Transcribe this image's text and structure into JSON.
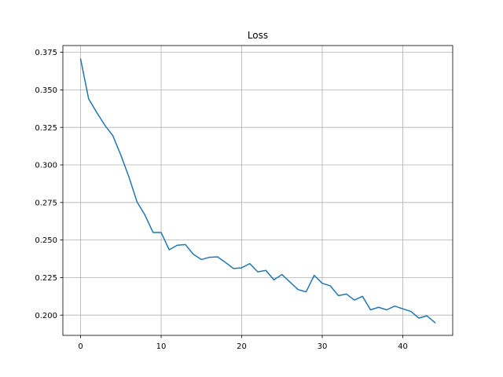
{
  "colors": {
    "line": "#1f77b4",
    "grid": "#b0b0b0",
    "axes": "#000000",
    "background": "#ffffff"
  },
  "chart_data": {
    "type": "line",
    "title": "Loss",
    "xlabel": "",
    "ylabel": "",
    "grid": true,
    "xlim": [
      -2.2,
      46.2
    ],
    "ylim": [
      0.1865,
      0.3795
    ],
    "xticks": [
      0,
      10,
      20,
      30,
      40
    ],
    "xtick_labels": [
      "0",
      "10",
      "20",
      "30",
      "40"
    ],
    "yticks": [
      0.2,
      0.225,
      0.25,
      0.275,
      0.3,
      0.325,
      0.35,
      0.375
    ],
    "ytick_labels": [
      "0.200",
      "0.225",
      "0.250",
      "0.275",
      "0.300",
      "0.325",
      "0.350",
      "0.375"
    ],
    "series": [
      {
        "x": [
          0,
          1,
          2,
          3,
          4,
          5,
          6,
          7,
          8,
          9,
          10,
          11,
          12,
          13,
          14,
          15,
          16,
          17,
          18,
          19,
          20,
          21,
          22,
          23,
          24,
          25,
          26,
          27,
          28,
          29,
          30,
          31,
          32,
          33,
          34,
          35,
          36,
          37,
          38,
          39,
          40,
          41,
          42,
          43,
          44
        ],
        "values": [
          0.3705,
          0.344,
          0.335,
          0.3265,
          0.3195,
          0.3065,
          0.292,
          0.2755,
          0.2665,
          0.255,
          0.255,
          0.2435,
          0.2465,
          0.247,
          0.2405,
          0.237,
          0.2385,
          0.2388,
          0.235,
          0.231,
          0.2315,
          0.2343,
          0.2288,
          0.2298,
          0.2235,
          0.227,
          0.222,
          0.217,
          0.2155,
          0.2265,
          0.2212,
          0.2195,
          0.213,
          0.214,
          0.21,
          0.2125,
          0.2035,
          0.2052,
          0.2035,
          0.206,
          0.2042,
          0.2025,
          0.198,
          0.1995,
          0.195
        ]
      }
    ]
  }
}
